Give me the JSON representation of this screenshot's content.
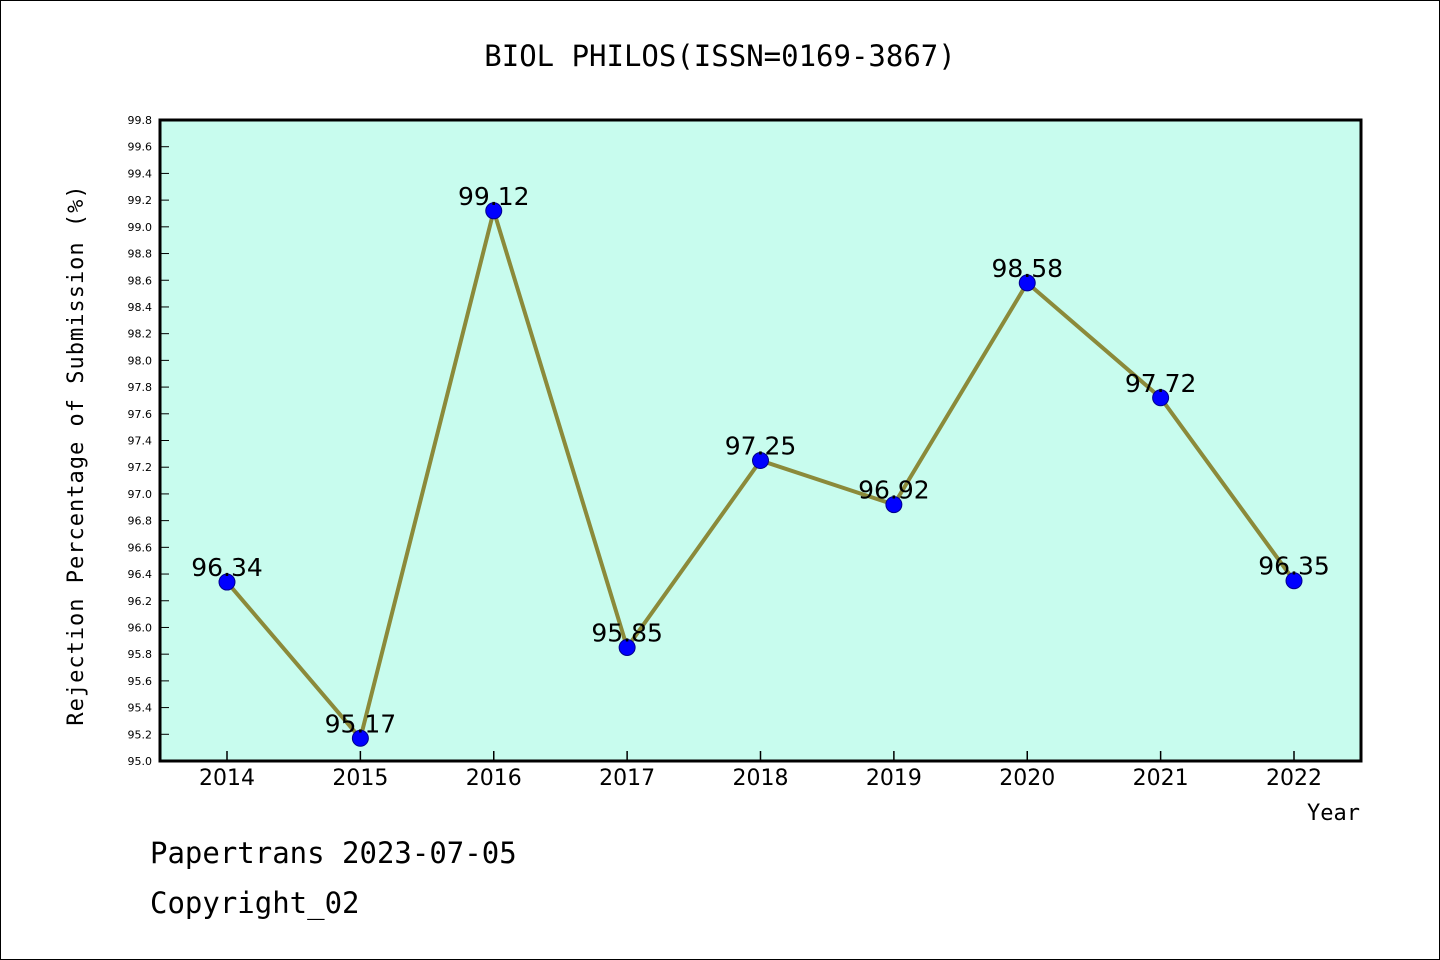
{
  "colors": {
    "plot_background": "#c8fcee",
    "line": "#8b8a3a",
    "marker": "#0000ff"
  },
  "footer": {
    "line1": "Papertrans 2023-07-05",
    "line2": "Copyright_02"
  },
  "chart_data": {
    "type": "line",
    "title": "BIOL PHILOS(ISSN=0169-3867)",
    "xlabel": "Year",
    "ylabel": "Rejection Percentage of Submission (%)",
    "categories": [
      "2014",
      "2015",
      "2016",
      "2017",
      "2018",
      "2019",
      "2020",
      "2021",
      "2022"
    ],
    "series": [
      {
        "values": [
          96.34,
          95.17,
          99.12,
          95.85,
          97.25,
          96.92,
          98.58,
          97.72,
          96.35
        ],
        "labels": [
          "96.34",
          "95.17",
          "99.12",
          "95.85",
          "97.25",
          "96.92",
          "98.58",
          "97.72",
          "96.35"
        ]
      }
    ],
    "ylim": [
      95.0,
      99.8
    ],
    "yticks": [
      "95.0",
      "95.2",
      "95.4",
      "95.6",
      "95.8",
      "96.0",
      "96.2",
      "96.4",
      "96.6",
      "96.8",
      "97.0",
      "97.2",
      "97.4",
      "97.6",
      "97.8",
      "98.0",
      "98.2",
      "98.4",
      "98.6",
      "98.8",
      "99.0",
      "99.2",
      "99.4",
      "99.6",
      "99.8"
    ],
    "grid": false,
    "legend": "none"
  }
}
